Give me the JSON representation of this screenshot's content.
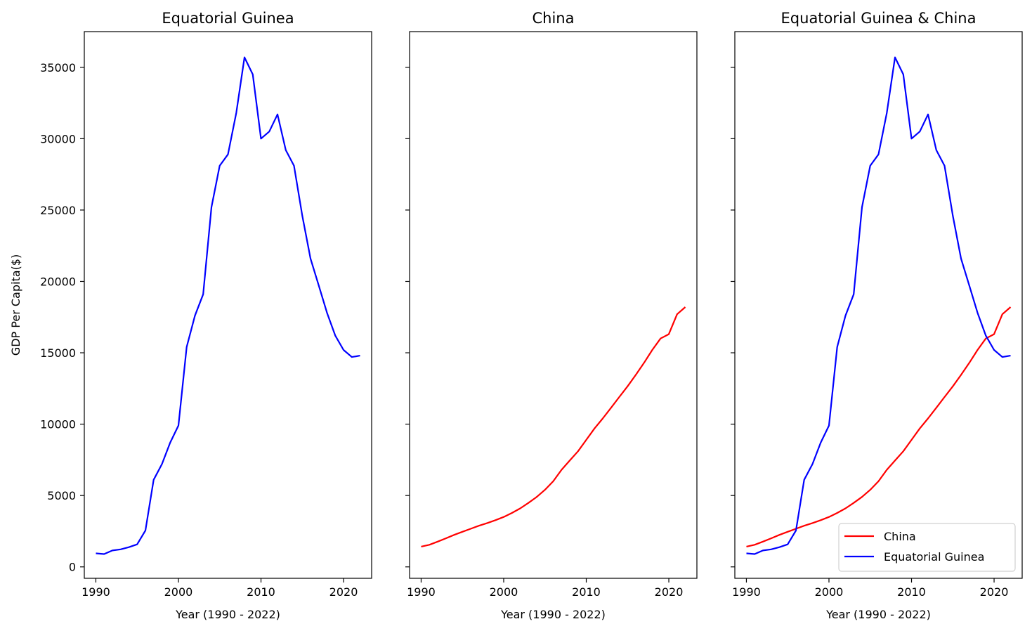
{
  "chart_data": [
    {
      "type": "line",
      "title": "Equatorial Guinea",
      "xlabel": "Year (1990 - 2022)",
      "ylabel": "GDP Per Capita($)",
      "xlim": [
        1988.6,
        2023.4
      ],
      "ylim": [
        -800,
        37500
      ],
      "xticks": [
        1990,
        2000,
        2010,
        2020
      ],
      "yticks": [
        0,
        5000,
        10000,
        15000,
        20000,
        25000,
        30000,
        35000
      ],
      "show_ytick_labels": true,
      "legend": null,
      "series": [
        {
          "key": "eq",
          "color": "#0000ff",
          "x": [
            1990,
            1991,
            1992,
            1993,
            1994,
            1995,
            1996,
            1997,
            1998,
            1999,
            2000,
            2001,
            2002,
            2003,
            2004,
            2005,
            2006,
            2007,
            2008,
            2009,
            2010,
            2011,
            2012,
            2013,
            2014,
            2015,
            2016,
            2017,
            2018,
            2019,
            2020,
            2021,
            2022
          ],
          "y": [
            950,
            900,
            1150,
            1230,
            1380,
            1580,
            2550,
            6100,
            7200,
            8700,
            9900,
            15400,
            17600,
            19100,
            25200,
            28100,
            28900,
            31800,
            35700,
            34500,
            30000,
            30500,
            31700,
            29200,
            28100,
            24600,
            21600,
            19700,
            17800,
            16200,
            15200,
            14700,
            14800
          ]
        }
      ]
    },
    {
      "type": "line",
      "title": "China",
      "xlabel": "Year (1990 - 2022)",
      "ylabel": "",
      "xlim": [
        1988.6,
        2023.4
      ],
      "ylim": [
        -800,
        37500
      ],
      "xticks": [
        1990,
        2000,
        2010,
        2020
      ],
      "yticks": [
        0,
        5000,
        10000,
        15000,
        20000,
        25000,
        30000,
        35000
      ],
      "show_ytick_labels": false,
      "legend": null,
      "series": [
        {
          "key": "cn",
          "color": "#ff0000",
          "x": [
            1990,
            1991,
            1992,
            1993,
            1994,
            1995,
            1996,
            1997,
            1998,
            1999,
            2000,
            2001,
            2002,
            2003,
            2004,
            2005,
            2006,
            2007,
            2008,
            2009,
            2010,
            2011,
            2012,
            2013,
            2014,
            2015,
            2016,
            2017,
            2018,
            2019,
            2020,
            2021,
            2022
          ],
          "y": [
            1420,
            1550,
            1770,
            2000,
            2240,
            2460,
            2670,
            2880,
            3070,
            3270,
            3500,
            3780,
            4100,
            4480,
            4900,
            5400,
            6000,
            6800,
            7450,
            8100,
            8900,
            9700,
            10400,
            11150,
            11900,
            12650,
            13450,
            14300,
            15200,
            16000,
            16300,
            17700,
            18200
          ]
        }
      ]
    },
    {
      "type": "line",
      "title": "Equatorial Guinea & China",
      "xlabel": "Year (1990 - 2022)",
      "ylabel": "",
      "xlim": [
        1988.6,
        2023.4
      ],
      "ylim": [
        -800,
        37500
      ],
      "xticks": [
        1990,
        2000,
        2010,
        2020
      ],
      "yticks": [
        0,
        5000,
        10000,
        15000,
        20000,
        25000,
        30000,
        35000
      ],
      "show_ytick_labels": false,
      "legend": "lower right",
      "series": [
        {
          "key": "cn",
          "name": "China",
          "color": "#ff0000",
          "x": [
            1990,
            1991,
            1992,
            1993,
            1994,
            1995,
            1996,
            1997,
            1998,
            1999,
            2000,
            2001,
            2002,
            2003,
            2004,
            2005,
            2006,
            2007,
            2008,
            2009,
            2010,
            2011,
            2012,
            2013,
            2014,
            2015,
            2016,
            2017,
            2018,
            2019,
            2020,
            2021,
            2022
          ],
          "y": [
            1420,
            1550,
            1770,
            2000,
            2240,
            2460,
            2670,
            2880,
            3070,
            3270,
            3500,
            3780,
            4100,
            4480,
            4900,
            5400,
            6000,
            6800,
            7450,
            8100,
            8900,
            9700,
            10400,
            11150,
            11900,
            12650,
            13450,
            14300,
            15200,
            16000,
            16300,
            17700,
            18200
          ]
        },
        {
          "key": "eq",
          "name": "Equatorial Guinea",
          "color": "#0000ff",
          "x": [
            1990,
            1991,
            1992,
            1993,
            1994,
            1995,
            1996,
            1997,
            1998,
            1999,
            2000,
            2001,
            2002,
            2003,
            2004,
            2005,
            2006,
            2007,
            2008,
            2009,
            2010,
            2011,
            2012,
            2013,
            2014,
            2015,
            2016,
            2017,
            2018,
            2019,
            2020,
            2021,
            2022
          ],
          "y": [
            950,
            900,
            1150,
            1230,
            1380,
            1580,
            2550,
            6100,
            7200,
            8700,
            9900,
            15400,
            17600,
            19100,
            25200,
            28100,
            28900,
            31800,
            35700,
            34500,
            30000,
            30500,
            31700,
            29200,
            28100,
            24600,
            21600,
            19700,
            17800,
            16200,
            15200,
            14700,
            14800
          ]
        }
      ]
    }
  ]
}
